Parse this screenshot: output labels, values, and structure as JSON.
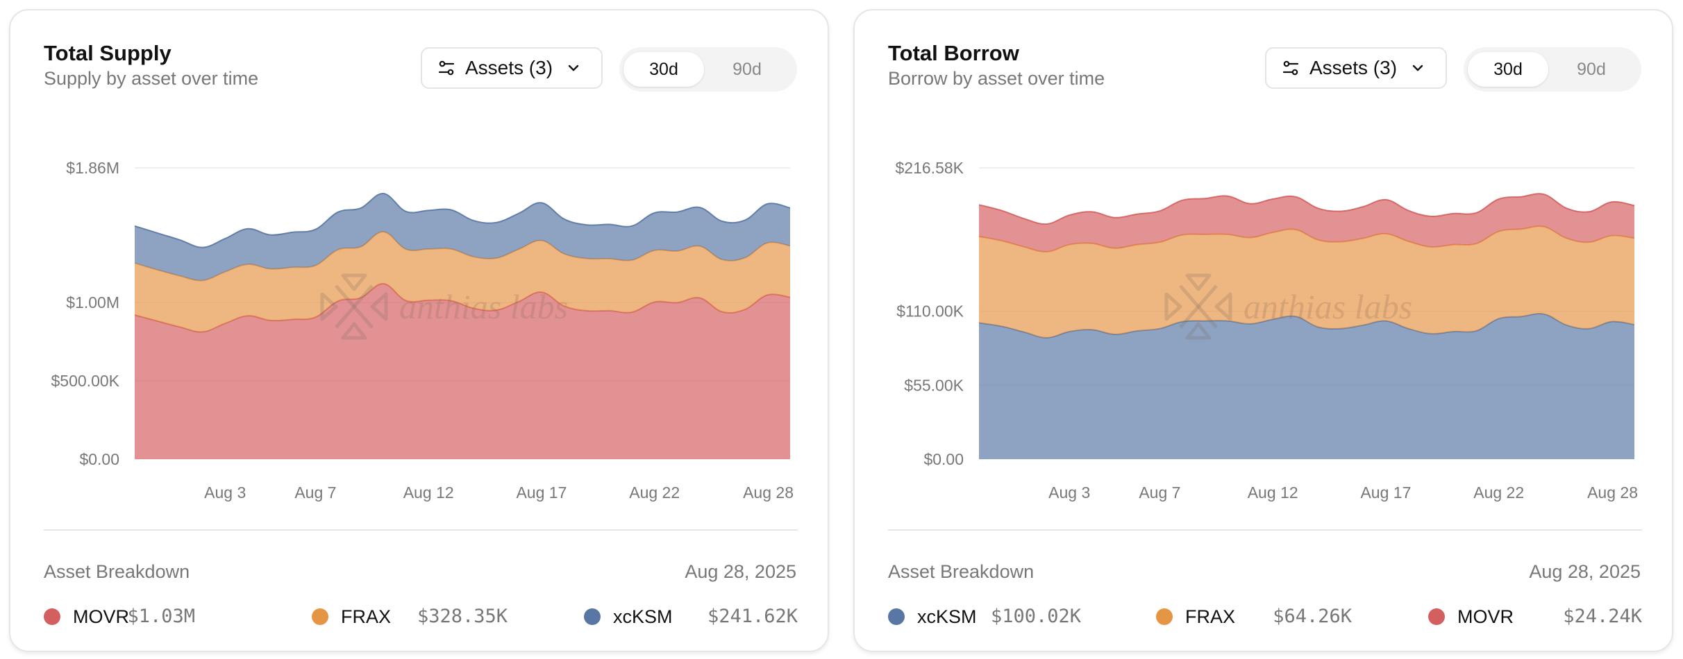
{
  "cards": [
    {
      "title": "Total Supply",
      "subtitle": "Supply by asset over time",
      "assets_button": {
        "label": "Assets (3)",
        "icon": "sliders-icon",
        "chevron": "chevron-down-icon"
      },
      "range_options": [
        {
          "label": "30d",
          "active": true
        },
        {
          "label": "90d",
          "active": false
        }
      ],
      "watermark": "anthias labs",
      "breakdown_label": "Asset Breakdown",
      "breakdown_date": "Aug 28, 2025",
      "legend": [
        {
          "name": "MOVR",
          "value": "$1.03M",
          "color": "#d45f5f"
        },
        {
          "name": "FRAX",
          "value": "$328.35K",
          "color": "#e69545"
        },
        {
          "name": "xcKSM",
          "value": "$241.62K",
          "color": "#5877a4"
        }
      ]
    },
    {
      "title": "Total Borrow",
      "subtitle": "Borrow by asset over time",
      "assets_button": {
        "label": "Assets (3)",
        "icon": "sliders-icon",
        "chevron": "chevron-down-icon"
      },
      "range_options": [
        {
          "label": "30d",
          "active": true
        },
        {
          "label": "90d",
          "active": false
        }
      ],
      "watermark": "anthias labs",
      "breakdown_label": "Asset Breakdown",
      "breakdown_date": "Aug 28, 2025",
      "legend": [
        {
          "name": "xcKSM",
          "value": "$100.02K",
          "color": "#5877a4"
        },
        {
          "name": "FRAX",
          "value": "$64.26K",
          "color": "#e69545"
        },
        {
          "name": "MOVR",
          "value": "$24.24K",
          "color": "#d45f5f"
        }
      ]
    }
  ],
  "chart_data": [
    {
      "type": "area",
      "stacked": true,
      "title": "Total Supply",
      "subtitle": "Supply by asset over time",
      "unit": "USD millions",
      "x": [
        "Jul 30",
        "Jul 31",
        "Aug 1",
        "Aug 2",
        "Aug 3",
        "Aug 4",
        "Aug 5",
        "Aug 6",
        "Aug 7",
        "Aug 8",
        "Aug 9",
        "Aug 10",
        "Aug 11",
        "Aug 12",
        "Aug 13",
        "Aug 14",
        "Aug 15",
        "Aug 16",
        "Aug 17",
        "Aug 18",
        "Aug 19",
        "Aug 20",
        "Aug 21",
        "Aug 22",
        "Aug 23",
        "Aug 24",
        "Aug 25",
        "Aug 26",
        "Aug 27",
        "Aug 28"
      ],
      "xticks": [
        "Aug 3",
        "Aug 7",
        "Aug 12",
        "Aug 17",
        "Aug 22",
        "Aug 28"
      ],
      "yticks": [
        {
          "value": 0,
          "label": "$0.00"
        },
        {
          "value": 0.5,
          "label": "$500.00K"
        },
        {
          "value": 1.0,
          "label": "$1.00M"
        },
        {
          "value": 1.86,
          "label": "$1.86M"
        }
      ],
      "ylim": [
        0,
        1.86
      ],
      "grid": true,
      "series": [
        {
          "name": "MOVR",
          "color": "#d45f5f",
          "values": [
            0.921,
            0.882,
            0.844,
            0.813,
            0.867,
            0.916,
            0.886,
            0.893,
            0.907,
            1.01,
            1.031,
            1.121,
            1.013,
            1.015,
            1.012,
            0.963,
            0.952,
            1.007,
            1.067,
            0.978,
            0.948,
            0.948,
            0.939,
            1.004,
            1.0,
            1.03,
            0.941,
            0.956,
            1.049,
            1.034
          ]
        },
        {
          "name": "FRAX",
          "color": "#e69545",
          "values": [
            0.331,
            0.327,
            0.326,
            0.328,
            0.329,
            0.328,
            0.329,
            0.332,
            0.33,
            0.328,
            0.325,
            0.331,
            0.328,
            0.327,
            0.33,
            0.329,
            0.332,
            0.334,
            0.329,
            0.333,
            0.333,
            0.332,
            0.332,
            0.329,
            0.329,
            0.33,
            0.333,
            0.33,
            0.332,
            0.328
          ]
        },
        {
          "name": "xcKSM",
          "color": "#5877a4",
          "values": [
            0.237,
            0.235,
            0.23,
            0.211,
            0.212,
            0.227,
            0.217,
            0.224,
            0.23,
            0.24,
            0.247,
            0.244,
            0.241,
            0.246,
            0.25,
            0.231,
            0.227,
            0.229,
            0.241,
            0.222,
            0.215,
            0.219,
            0.218,
            0.24,
            0.249,
            0.247,
            0.245,
            0.24,
            0.249,
            0.242
          ]
        }
      ]
    },
    {
      "type": "area",
      "stacked": true,
      "title": "Total Borrow",
      "subtitle": "Borrow by asset over time",
      "unit": "USD thousands",
      "x": [
        "Jul 30",
        "Jul 31",
        "Aug 1",
        "Aug 2",
        "Aug 3",
        "Aug 4",
        "Aug 5",
        "Aug 6",
        "Aug 7",
        "Aug 8",
        "Aug 9",
        "Aug 10",
        "Aug 11",
        "Aug 12",
        "Aug 13",
        "Aug 14",
        "Aug 15",
        "Aug 16",
        "Aug 17",
        "Aug 18",
        "Aug 19",
        "Aug 20",
        "Aug 21",
        "Aug 22",
        "Aug 23",
        "Aug 24",
        "Aug 25",
        "Aug 26",
        "Aug 27",
        "Aug 28"
      ],
      "xticks": [
        "Aug 3",
        "Aug 7",
        "Aug 12",
        "Aug 17",
        "Aug 22",
        "Aug 28"
      ],
      "yticks": [
        {
          "value": 0,
          "label": "$0.00"
        },
        {
          "value": 55,
          "label": "$55.00K"
        },
        {
          "value": 110,
          "label": "$110.00K"
        },
        {
          "value": 216.58,
          "label": "$216.58K"
        }
      ],
      "ylim": [
        0,
        216.58
      ],
      "grid": true,
      "series": [
        {
          "name": "xcKSM",
          "color": "#5877a4",
          "values": [
            101.4,
            98.8,
            94.5,
            90.3,
            94.9,
            96.3,
            92.8,
            95.4,
            97.1,
            102.3,
            102.8,
            102.8,
            100.6,
            104.0,
            106.2,
            98.3,
            97.1,
            99.7,
            102.8,
            97.1,
            93.3,
            94.9,
            95.4,
            104.5,
            106.1,
            107.9,
            99.7,
            97.1,
            102.3,
            100.02
          ]
        },
        {
          "name": "FRAX",
          "color": "#e69545",
          "values": [
            64.1,
            63.6,
            63.3,
            63.9,
            64.6,
            64.1,
            64.0,
            64.1,
            64.2,
            64.4,
            64.3,
            64.3,
            64.1,
            64.5,
            64.5,
            64.7,
            64.5,
            64.5,
            64.8,
            64.8,
            64.5,
            64.6,
            64.8,
            64.8,
            65.0,
            64.9,
            64.5,
            64.2,
            63.9,
            64.26
          ]
        },
        {
          "name": "MOVR",
          "color": "#d45f5f",
          "values": [
            23.6,
            22.4,
            21.0,
            20.6,
            21.9,
            23.5,
            22.8,
            22.7,
            23.2,
            25.8,
            26.7,
            28.5,
            25.2,
            24.9,
            24.4,
            23.5,
            22.7,
            23.5,
            25.3,
            22.9,
            22.7,
            23.1,
            22.9,
            24.1,
            24.0,
            24.1,
            22.3,
            22.7,
            25.0,
            24.24
          ]
        }
      ]
    }
  ]
}
